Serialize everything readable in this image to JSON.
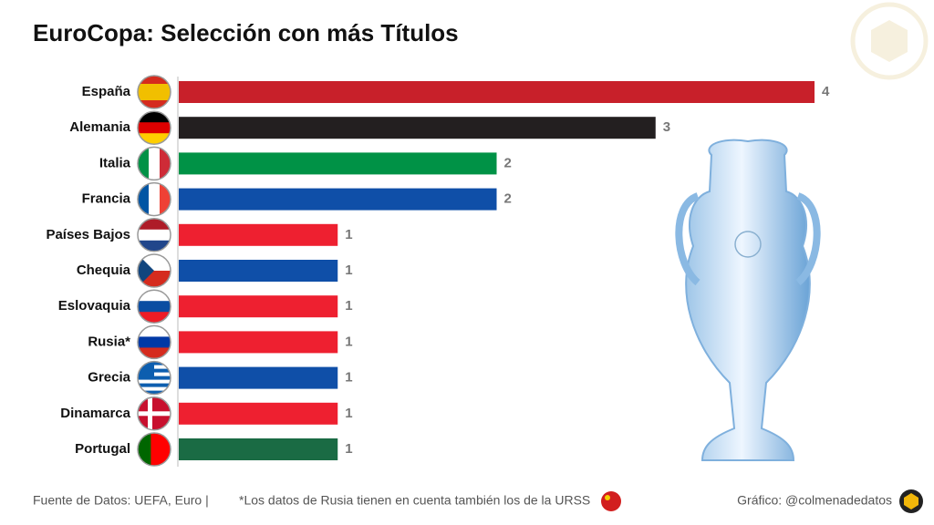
{
  "chart_data": {
    "type": "bar",
    "orientation": "horizontal",
    "title": "EuroCopa: Selección con más Títulos",
    "categories": [
      "España",
      "Alemania",
      "Italia",
      "Francia",
      "Países Bajos",
      "Chequia",
      "Eslovaquia",
      "Rusia*",
      "Grecia",
      "Dinamarca",
      "Portugal"
    ],
    "values": [
      4,
      3,
      2,
      2,
      1,
      1,
      1,
      1,
      1,
      1,
      1
    ],
    "colors": [
      "#c8202a",
      "#231f20",
      "#009246",
      "#0f4fa8",
      "#ee2030",
      "#0f4fa8",
      "#ee2030",
      "#ee2030",
      "#0f4fa8",
      "#ee2030",
      "#1a6b44"
    ],
    "source": "Fuente de Datos: UEFA, Euro |",
    "note": "*Los datos de Rusia tienen en cuenta también los de la URSS",
    "credit": "Gráfico: @colmenadedatos"
  }
}
